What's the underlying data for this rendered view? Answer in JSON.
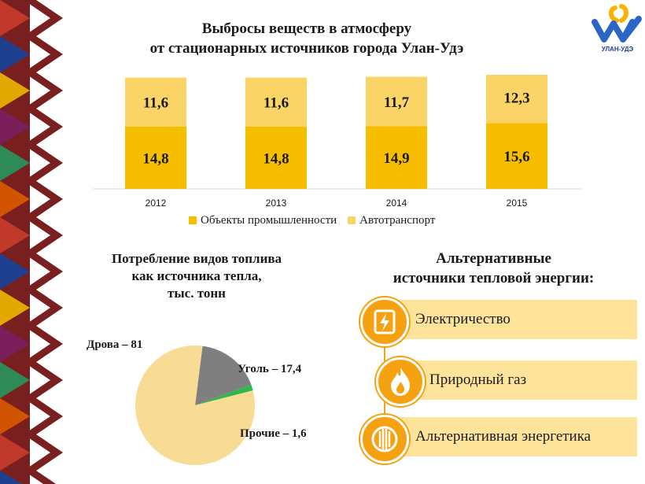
{
  "header": {
    "title_line1": "Выбросы веществ в атмосферу",
    "title_line2": "от стационарных источников города Улан-Удэ",
    "logo_text": "УЛАН-УДЭ"
  },
  "colors": {
    "industry": "#f7be00",
    "transport": "#fad467",
    "accent": "#f6a10f",
    "pie_firewood": "#f8dc95",
    "pie_coal": "#7f7f7f",
    "pie_other": "#2db84a",
    "alt_bar": "#fde49a"
  },
  "chart_data": [
    {
      "type": "bar",
      "stacked": true,
      "categories": [
        "2012",
        "2013",
        "2014",
        "2015"
      ],
      "series": [
        {
          "name": "Объекты промышленности",
          "values": [
            14.8,
            14.8,
            14.9,
            15.6
          ]
        },
        {
          "name": "Автотранспорт",
          "values": [
            11.6,
            11.6,
            11.7,
            12.3
          ]
        }
      ],
      "data_labels": [
        [
          "14,8",
          "14,8",
          "14,9",
          "15,6"
        ],
        [
          "11,6",
          "11,6",
          "11,7",
          "12,3"
        ]
      ],
      "ylim": [
        0,
        28
      ],
      "legend_position": "bottom",
      "grid": false
    },
    {
      "type": "pie",
      "title_lines": [
        "Потребление видов топлива",
        "как источника тепла,",
        "тыс. тонн"
      ],
      "slices": [
        {
          "name": "Дрова",
          "value": 81,
          "label": "Дрова – 81"
        },
        {
          "name": "Уголь",
          "value": 17.4,
          "label": "Уголь – 17,4"
        },
        {
          "name": "Прочие",
          "value": 1.6,
          "label": "Прочие – 1,6"
        }
      ]
    }
  ],
  "alternatives": {
    "title_line1": "Альтернативные",
    "title_line2": "источники тепловой энергии:",
    "items": [
      {
        "label": "Электричество",
        "icon": "lightning-icon"
      },
      {
        "label": "Природный газ",
        "icon": "flame-icon"
      },
      {
        "label": "Альтернативная энергетика",
        "icon": "radiator-icon"
      }
    ]
  }
}
